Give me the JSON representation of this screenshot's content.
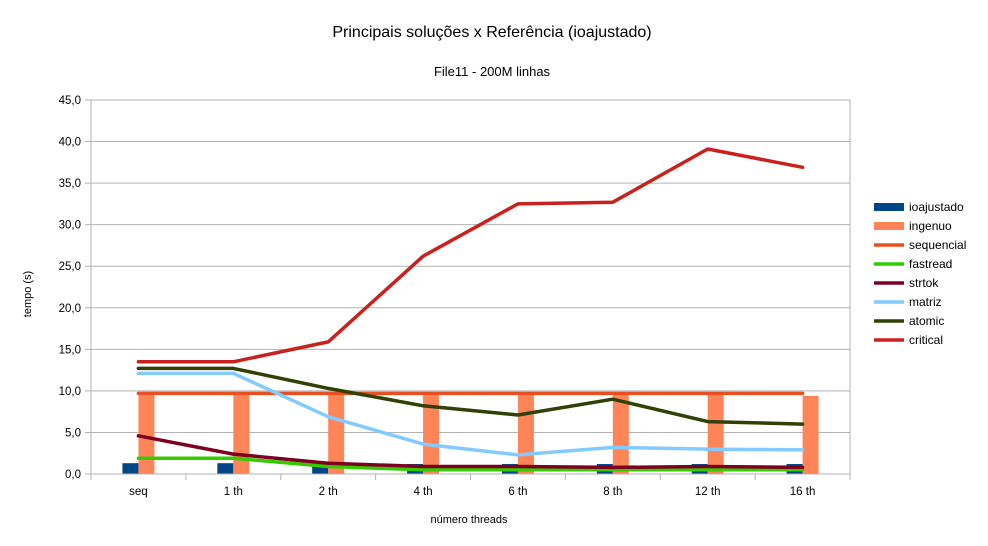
{
  "chart_data": {
    "type": "bar",
    "title": "Principais soluções x Referência (ioajustado)",
    "subtitle": "File11 - 200M linhas",
    "xlabel": "número threads",
    "ylabel": "tempo (s)",
    "ylim": [
      0,
      45
    ],
    "ytick_step": 5,
    "ytick_labels": [
      "0,0",
      "5,0",
      "10,0",
      "15,0",
      "20,0",
      "25,0",
      "30,0",
      "35,0",
      "40,0",
      "45,0"
    ],
    "grid": true,
    "legend_position": "right",
    "categories": [
      "seq",
      "1 th",
      "2 th",
      "4 th",
      "6 th",
      "8 th",
      "12 th",
      "16 th"
    ],
    "series": [
      {
        "name": "ioajustado",
        "kind": "bar",
        "color": "#004586",
        "values": [
          1.3,
          1.3,
          1.2,
          1.2,
          1.2,
          1.2,
          1.2,
          1.2
        ]
      },
      {
        "name": "ingenuo",
        "kind": "bar",
        "color": "#ff8559",
        "values": [
          9.6,
          9.6,
          9.6,
          9.6,
          9.6,
          9.6,
          9.6,
          9.4
        ]
      },
      {
        "name": "sequencial",
        "kind": "line",
        "color": "#e8501f",
        "values": [
          9.7,
          9.7,
          9.7,
          9.7,
          9.7,
          9.7,
          9.7,
          9.7
        ]
      },
      {
        "name": "fastread",
        "kind": "line",
        "color": "#33cc00",
        "values": [
          1.9,
          1.9,
          0.9,
          0.5,
          0.5,
          0.5,
          0.5,
          0.5
        ]
      },
      {
        "name": "strtok",
        "kind": "line",
        "color": "#7e0021",
        "values": [
          4.6,
          2.4,
          1.3,
          0.9,
          0.9,
          0.8,
          0.9,
          0.8
        ]
      },
      {
        "name": "matriz",
        "kind": "line",
        "color": "#83caff",
        "values": [
          12.1,
          12.1,
          6.9,
          3.6,
          2.3,
          3.2,
          3.0,
          2.9
        ]
      },
      {
        "name": "atomic",
        "kind": "line",
        "color": "#314004",
        "values": [
          12.7,
          12.7,
          10.3,
          8.2,
          7.1,
          9.0,
          6.3,
          6.0
        ]
      },
      {
        "name": "critical",
        "kind": "line",
        "color": "#c9211e",
        "values": [
          13.5,
          13.5,
          15.9,
          26.2,
          32.5,
          32.7,
          39.1,
          36.9
        ]
      }
    ]
  }
}
